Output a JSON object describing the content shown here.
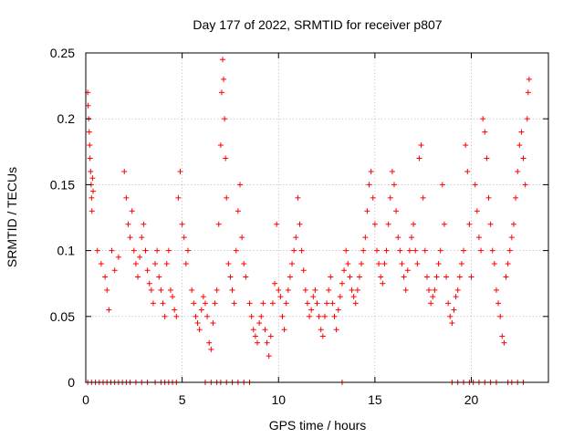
{
  "chart_data": {
    "type": "scatter",
    "title": "Day 177 of 2022, SRMTID for receiver p807",
    "xlabel": "GPS time / hours",
    "ylabel": "SRMTID / TECUs",
    "xlim": [
      0,
      24
    ],
    "ylim": [
      0,
      0.25
    ],
    "x_ticks": [
      0,
      5,
      10,
      15,
      20
    ],
    "x_tick_labels": [
      "0",
      "5",
      "10",
      "15",
      "20"
    ],
    "y_ticks": [
      0,
      0.05,
      0.1,
      0.15,
      0.2,
      0.25
    ],
    "y_tick_labels": [
      "0",
      "0.05",
      "0.1",
      "0.15",
      "0.2",
      "0.25"
    ],
    "grid": true,
    "marker": "+",
    "color": "#ff0000",
    "series": [
      {
        "name": "SRMTID",
        "points": [
          [
            0.1,
            0.22
          ],
          [
            0.12,
            0.21
          ],
          [
            0.15,
            0.2
          ],
          [
            0.18,
            0.19
          ],
          [
            0.2,
            0.18
          ],
          [
            0.22,
            0.17
          ],
          [
            0.25,
            0.16
          ],
          [
            0.28,
            0.15
          ],
          [
            0.3,
            0.14
          ],
          [
            0.32,
            0.13
          ],
          [
            0.35,
            0.155
          ],
          [
            0.38,
            0.145
          ],
          [
            0.6,
            0.1
          ],
          [
            0.8,
            0.09
          ],
          [
            1.0,
            0.08
          ],
          [
            1.1,
            0.07
          ],
          [
            1.2,
            0.055
          ],
          [
            1.35,
            0.1
          ],
          [
            1.5,
            0.085
          ],
          [
            1.7,
            0.095
          ],
          [
            2.0,
            0.16
          ],
          [
            2.1,
            0.14
          ],
          [
            2.2,
            0.12
          ],
          [
            2.3,
            0.11
          ],
          [
            2.4,
            0.13
          ],
          [
            2.5,
            0.1
          ],
          [
            2.6,
            0.09
          ],
          [
            2.7,
            0.08
          ],
          [
            2.8,
            0.095
          ],
          [
            2.9,
            0.11
          ],
          [
            3.0,
            0.12
          ],
          [
            3.1,
            0.1
          ],
          [
            3.2,
            0.085
          ],
          [
            3.3,
            0.075
          ],
          [
            3.4,
            0.07
          ],
          [
            3.5,
            0.06
          ],
          [
            3.6,
            0.09
          ],
          [
            3.7,
            0.1
          ],
          [
            3.8,
            0.08
          ],
          [
            3.9,
            0.07
          ],
          [
            4.0,
            0.06
          ],
          [
            4.1,
            0.05
          ],
          [
            4.2,
            0.09
          ],
          [
            4.3,
            0.1
          ],
          [
            4.4,
            0.07
          ],
          [
            4.5,
            0.065
          ],
          [
            4.6,
            0.055
          ],
          [
            4.7,
            0.05
          ],
          [
            4.8,
            0.14
          ],
          [
            4.9,
            0.16
          ],
          [
            5.0,
            0.12
          ],
          [
            5.1,
            0.11
          ],
          [
            5.2,
            0.09
          ],
          [
            5.3,
            0.1
          ],
          [
            5.5,
            0.07
          ],
          [
            5.6,
            0.06
          ],
          [
            5.7,
            0.05
          ],
          [
            5.8,
            0.045
          ],
          [
            5.9,
            0.04
          ],
          [
            6.0,
            0.055
          ],
          [
            6.1,
            0.065
          ],
          [
            6.2,
            0.06
          ],
          [
            6.3,
            0.05
          ],
          [
            6.4,
            0.03
          ],
          [
            6.5,
            0.025
          ],
          [
            6.6,
            0.045
          ],
          [
            6.7,
            0.06
          ],
          [
            6.8,
            0.07
          ],
          [
            6.9,
            0.12
          ],
          [
            7.0,
            0.18
          ],
          [
            7.05,
            0.22
          ],
          [
            7.1,
            0.245
          ],
          [
            7.15,
            0.23
          ],
          [
            7.2,
            0.2
          ],
          [
            7.25,
            0.17
          ],
          [
            7.3,
            0.14
          ],
          [
            7.4,
            0.09
          ],
          [
            7.5,
            0.08
          ],
          [
            7.6,
            0.07
          ],
          [
            7.7,
            0.06
          ],
          [
            7.8,
            0.1
          ],
          [
            7.9,
            0.13
          ],
          [
            8.0,
            0.15
          ],
          [
            8.1,
            0.11
          ],
          [
            8.2,
            0.09
          ],
          [
            8.3,
            0.08
          ],
          [
            8.5,
            0.06
          ],
          [
            8.6,
            0.05
          ],
          [
            8.7,
            0.04
          ],
          [
            8.8,
            0.035
          ],
          [
            8.9,
            0.03
          ],
          [
            9.0,
            0.045
          ],
          [
            9.1,
            0.05
          ],
          [
            9.2,
            0.06
          ],
          [
            9.3,
            0.04
          ],
          [
            9.4,
            0.03
          ],
          [
            9.5,
            0.02
          ],
          [
            9.6,
            0.035
          ],
          [
            9.7,
            0.06
          ],
          [
            9.8,
            0.075
          ],
          [
            9.9,
            0.12
          ],
          [
            10.0,
            0.07
          ],
          [
            10.1,
            0.065
          ],
          [
            10.2,
            0.05
          ],
          [
            10.3,
            0.04
          ],
          [
            10.4,
            0.06
          ],
          [
            10.5,
            0.07
          ],
          [
            10.6,
            0.08
          ],
          [
            10.7,
            0.09
          ],
          [
            10.8,
            0.1
          ],
          [
            10.9,
            0.11
          ],
          [
            11.0,
            0.14
          ],
          [
            11.1,
            0.12
          ],
          [
            11.2,
            0.1
          ],
          [
            11.3,
            0.085
          ],
          [
            11.4,
            0.07
          ],
          [
            11.5,
            0.06
          ],
          [
            11.6,
            0.05
          ],
          [
            11.7,
            0.055
          ],
          [
            11.8,
            0.065
          ],
          [
            11.9,
            0.07
          ],
          [
            12.0,
            0.06
          ],
          [
            12.1,
            0.05
          ],
          [
            12.2,
            0.04
          ],
          [
            12.3,
            0.035
          ],
          [
            12.4,
            0.05
          ],
          [
            12.5,
            0.06
          ],
          [
            12.6,
            0.07
          ],
          [
            12.7,
            0.08
          ],
          [
            12.8,
            0.06
          ],
          [
            12.9,
            0.05
          ],
          [
            13.0,
            0.04
          ],
          [
            13.1,
            0.055
          ],
          [
            13.2,
            0.065
          ],
          [
            13.3,
            0.075
          ],
          [
            13.4,
            0.085
          ],
          [
            13.5,
            0.1
          ],
          [
            13.6,
            0.09
          ],
          [
            13.7,
            0.08
          ],
          [
            13.8,
            0.07
          ],
          [
            13.9,
            0.065
          ],
          [
            14.0,
            0.06
          ],
          [
            14.1,
            0.07
          ],
          [
            14.2,
            0.08
          ],
          [
            14.3,
            0.09
          ],
          [
            14.4,
            0.1
          ],
          [
            14.5,
            0.11
          ],
          [
            14.6,
            0.13
          ],
          [
            14.7,
            0.15
          ],
          [
            14.8,
            0.16
          ],
          [
            14.9,
            0.14
          ],
          [
            15.0,
            0.12
          ],
          [
            15.1,
            0.1
          ],
          [
            15.2,
            0.09
          ],
          [
            15.3,
            0.08
          ],
          [
            15.4,
            0.075
          ],
          [
            15.5,
            0.09
          ],
          [
            15.6,
            0.1
          ],
          [
            15.7,
            0.12
          ],
          [
            15.8,
            0.14
          ],
          [
            15.9,
            0.16
          ],
          [
            16.0,
            0.15
          ],
          [
            16.1,
            0.13
          ],
          [
            16.2,
            0.11
          ],
          [
            16.3,
            0.1
          ],
          [
            16.4,
            0.09
          ],
          [
            16.5,
            0.08
          ],
          [
            16.6,
            0.07
          ],
          [
            16.7,
            0.085
          ],
          [
            16.8,
            0.1
          ],
          [
            16.9,
            0.11
          ],
          [
            17.0,
            0.12
          ],
          [
            17.1,
            0.1
          ],
          [
            17.2,
            0.09
          ],
          [
            17.3,
            0.17
          ],
          [
            17.4,
            0.18
          ],
          [
            17.5,
            0.14
          ],
          [
            17.6,
            0.1
          ],
          [
            17.7,
            0.08
          ],
          [
            17.8,
            0.07
          ],
          [
            17.9,
            0.06
          ],
          [
            18.0,
            0.065
          ],
          [
            18.1,
            0.07
          ],
          [
            18.2,
            0.08
          ],
          [
            18.3,
            0.09
          ],
          [
            18.4,
            0.1
          ],
          [
            18.5,
            0.15
          ],
          [
            18.6,
            0.12
          ],
          [
            18.7,
            0.08
          ],
          [
            18.8,
            0.06
          ],
          [
            18.9,
            0.05
          ],
          [
            19.0,
            0.045
          ],
          [
            19.1,
            0.055
          ],
          [
            19.2,
            0.065
          ],
          [
            19.3,
            0.07
          ],
          [
            19.4,
            0.08
          ],
          [
            19.5,
            0.09
          ],
          [
            19.6,
            0.1
          ],
          [
            19.7,
            0.18
          ],
          [
            19.8,
            0.16
          ],
          [
            19.9,
            0.12
          ],
          [
            20.0,
            0.08
          ],
          [
            20.2,
            0.15
          ],
          [
            20.3,
            0.13
          ],
          [
            20.4,
            0.11
          ],
          [
            20.5,
            0.1
          ],
          [
            20.6,
            0.2
          ],
          [
            20.7,
            0.19
          ],
          [
            20.8,
            0.17
          ],
          [
            20.9,
            0.14
          ],
          [
            21.0,
            0.12
          ],
          [
            21.1,
            0.1
          ],
          [
            21.2,
            0.09
          ],
          [
            21.3,
            0.07
          ],
          [
            21.4,
            0.06
          ],
          [
            21.5,
            0.05
          ],
          [
            21.6,
            0.035
          ],
          [
            21.7,
            0.03
          ],
          [
            21.8,
            0.08
          ],
          [
            21.9,
            0.09
          ],
          [
            22.0,
            0.1
          ],
          [
            22.1,
            0.11
          ],
          [
            22.2,
            0.12
          ],
          [
            22.3,
            0.14
          ],
          [
            22.4,
            0.16
          ],
          [
            22.5,
            0.18
          ],
          [
            22.6,
            0.19
          ],
          [
            22.7,
            0.17
          ],
          [
            22.8,
            0.15
          ],
          [
            22.9,
            0.2
          ],
          [
            22.95,
            0.22
          ],
          [
            23.0,
            0.23
          ]
        ],
        "zero_points": [
          0.1,
          0.3,
          0.5,
          0.7,
          0.9,
          1.1,
          1.3,
          1.5,
          1.7,
          1.9,
          2.1,
          2.3,
          2.6,
          2.9,
          3.2,
          3.6,
          3.9,
          4.1,
          4.3,
          4.5,
          4.7,
          6.2,
          6.5,
          6.8,
          7.0,
          7.3,
          7.6,
          7.9,
          8.2,
          8.5,
          13.3,
          19.0,
          19.3,
          19.6,
          19.9,
          20.1,
          20.4,
          20.7,
          21.0,
          21.3,
          21.9,
          22.1,
          22.4,
          22.7
        ]
      }
    ]
  }
}
